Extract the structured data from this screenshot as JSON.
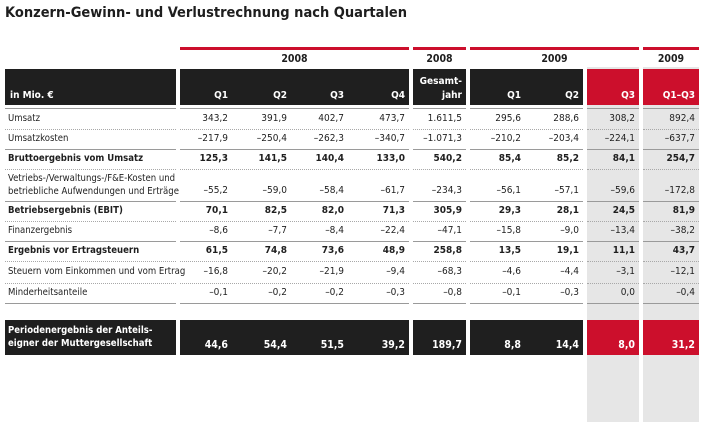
{
  "title": "Konzern-Gewinn- und Verlustrechnung nach Quartalen",
  "years": {
    "y2008": "2008",
    "y2008b": "2008",
    "y2009": "2009",
    "y2009b": "2009"
  },
  "header": {
    "unit": "in Mio. €",
    "q1": "Q1",
    "q2": "Q2",
    "q3": "Q3",
    "q4": "Q4",
    "gesamt_line1": "Gesamt-",
    "gesamt_line2": "jahr",
    "q1_09": "Q1",
    "q2_09": "Q2",
    "q3_09": "Q3",
    "q1q3": "Q1–Q3"
  },
  "rows": [
    {
      "label": "Umsatz",
      "bold": false,
      "values": [
        "343,2",
        "391,9",
        "402,7",
        "473,7",
        "1.611,5",
        "295,6",
        "288,6",
        "308,2",
        "892,4"
      ]
    },
    {
      "label": "Umsatzkosten",
      "bold": false,
      "values": [
        "–217,9",
        "–250,4",
        "–262,3",
        "–340,7",
        "–1.071,3",
        "–210,2",
        "–203,4",
        "–224,1",
        "–637,7"
      ]
    },
    {
      "label": "Bruttoergebnis vom Umsatz",
      "bold": true,
      "values": [
        "125,3",
        "141,5",
        "140,4",
        "133,0",
        "540,2",
        "85,4",
        "85,2",
        "84,1",
        "254,7"
      ]
    },
    {
      "label": "Vetriebs-/Verwaltungs-/F&E-Kosten und",
      "label2": "betriebliche Aufwendungen und Erträge",
      "bold": false,
      "values": [
        "–55,2",
        "–59,0",
        "–58,4",
        "–61,7",
        "–234,3",
        "–56,1",
        "–57,1",
        "–59,6",
        "–172,8"
      ]
    },
    {
      "label": "Betriebsergebnis (EBIT)",
      "bold": true,
      "values": [
        "70,1",
        "82,5",
        "82,0",
        "71,3",
        "305,9",
        "29,3",
        "28,1",
        "24,5",
        "81,9"
      ]
    },
    {
      "label": "Finanzergebnis",
      "bold": false,
      "values": [
        "–8,6",
        "–7,7",
        "–8,4",
        "–22,4",
        "–47,1",
        "–15,8",
        "–9,0",
        "–13,4",
        "–38,2"
      ]
    },
    {
      "label": "Ergebnis vor Ertragsteuern",
      "bold": true,
      "values": [
        "61,5",
        "74,8",
        "73,6",
        "48,9",
        "258,8",
        "13,5",
        "19,1",
        "11,1",
        "43,7"
      ]
    },
    {
      "label": "Steuern vom Einkommen und vom Ertrag",
      "bold": false,
      "values": [
        "–16,8",
        "–20,2",
        "–21,9",
        "–9,4",
        "–68,3",
        "–4,6",
        "–4,4",
        "–3,1",
        "–12,1"
      ]
    },
    {
      "label": "Minderheitsanteile",
      "bold": false,
      "values": [
        "–0,1",
        "–0,2",
        "–0,2",
        "–0,3",
        "–0,8",
        "–0,1",
        "–0,3",
        "0,0",
        "–0,4"
      ]
    }
  ],
  "footer": {
    "label1": "Periodenergebnis der Anteils-",
    "label2": "eigner der Muttergesellschaft",
    "values": [
      "44,6",
      "54,4",
      "51,5",
      "39,2",
      "189,7",
      "8,8",
      "14,4",
      "8,0",
      "31,2"
    ]
  }
}
